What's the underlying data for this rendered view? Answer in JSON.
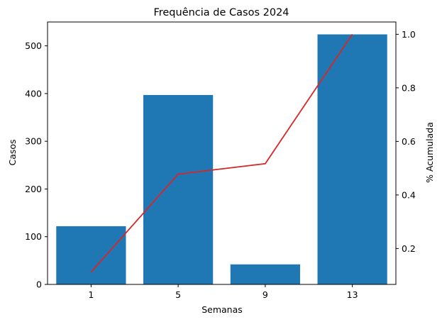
{
  "chart_data": {
    "type": "bar",
    "title": "Frequência de Casos 2024",
    "xlabel": "Semanas",
    "ylabel": "Casos",
    "y2label": "% Acumulada",
    "categories": [
      "1",
      "5",
      "9",
      "13"
    ],
    "series": [
      {
        "values": [
          122,
          397,
          42,
          524
        ],
        "kind": "bar",
        "axis": "left",
        "color": "#1f77b4"
      },
      {
        "values": [
          0.112,
          0.478,
          0.517,
          1.0
        ],
        "kind": "line",
        "axis": "right",
        "color": "#d62728"
      }
    ],
    "ylim": [
      0,
      550
    ],
    "y_ticks": [
      0,
      100,
      200,
      300,
      400,
      500
    ],
    "y2lim": [
      0.066,
      1.046
    ],
    "y2_ticks": [
      "0.2",
      "0.4",
      "0.6",
      "0.8",
      "1.0"
    ],
    "grid": false,
    "legend": "none"
  }
}
